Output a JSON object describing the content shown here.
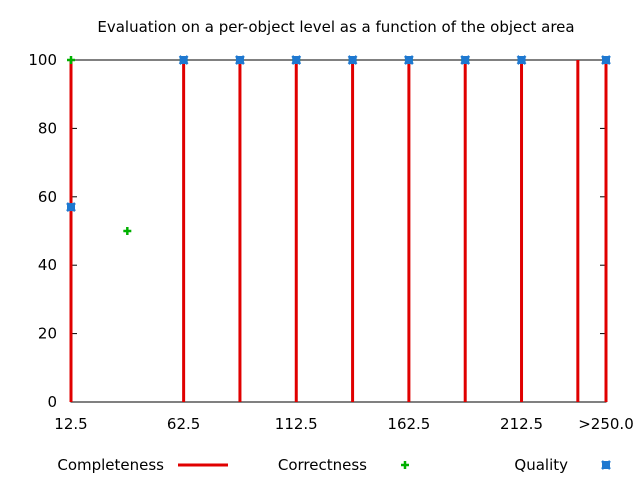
{
  "chart_data": {
    "type": "line",
    "title": "Evaluation on a per-object level as a function of the object area",
    "xlabel": "",
    "ylabel": "",
    "xlim": [
      12.5,
      250
    ],
    "ylim": [
      0,
      100
    ],
    "x_tick_labels": [
      {
        "value": 12.5,
        "label": "12.5"
      },
      {
        "value": 62.5,
        "label": "62.5"
      },
      {
        "value": 112.5,
        "label": "112.5"
      },
      {
        "value": 162.5,
        "label": "162.5"
      },
      {
        "value": 212.5,
        "label": "212.5"
      },
      {
        "value": 250,
        "label": ">250.0"
      }
    ],
    "y_ticks": [
      0,
      20,
      40,
      60,
      80,
      100
    ],
    "grid": false,
    "legend_position": "bottom",
    "series": [
      {
        "name": "Completeness",
        "style": "impulses",
        "color": "#e00000",
        "points": [
          {
            "x": 12.5,
            "y": 100
          },
          {
            "x": 62.5,
            "y": 100
          },
          {
            "x": 87.5,
            "y": 100
          },
          {
            "x": 112.5,
            "y": 100
          },
          {
            "x": 137.5,
            "y": 100
          },
          {
            "x": 162.5,
            "y": 100
          },
          {
            "x": 187.5,
            "y": 100
          },
          {
            "x": 212.5,
            "y": 100
          },
          {
            "x": 237.5,
            "y": 100
          },
          {
            "x": 250,
            "y": 100
          }
        ]
      },
      {
        "name": "Correctness",
        "style": "points",
        "marker": "plus",
        "color": "#00b000",
        "points": [
          {
            "x": 12.5,
            "y": 100
          },
          {
            "x": 37.5,
            "y": 50
          },
          {
            "x": 62.5,
            "y": 100
          },
          {
            "x": 87.5,
            "y": 100
          },
          {
            "x": 112.5,
            "y": 100
          },
          {
            "x": 137.5,
            "y": 100
          },
          {
            "x": 162.5,
            "y": 100
          },
          {
            "x": 187.5,
            "y": 100
          },
          {
            "x": 212.5,
            "y": 100
          },
          {
            "x": 250,
            "y": 100
          }
        ]
      },
      {
        "name": "Quality",
        "style": "points",
        "marker": "cross-square",
        "color": "#1e78d0",
        "points": [
          {
            "x": 12.5,
            "y": 57
          },
          {
            "x": 62.5,
            "y": 100
          },
          {
            "x": 87.5,
            "y": 100
          },
          {
            "x": 112.5,
            "y": 100
          },
          {
            "x": 137.5,
            "y": 100
          },
          {
            "x": 162.5,
            "y": 100
          },
          {
            "x": 187.5,
            "y": 100
          },
          {
            "x": 212.5,
            "y": 100
          },
          {
            "x": 250,
            "y": 100
          }
        ]
      }
    ]
  }
}
